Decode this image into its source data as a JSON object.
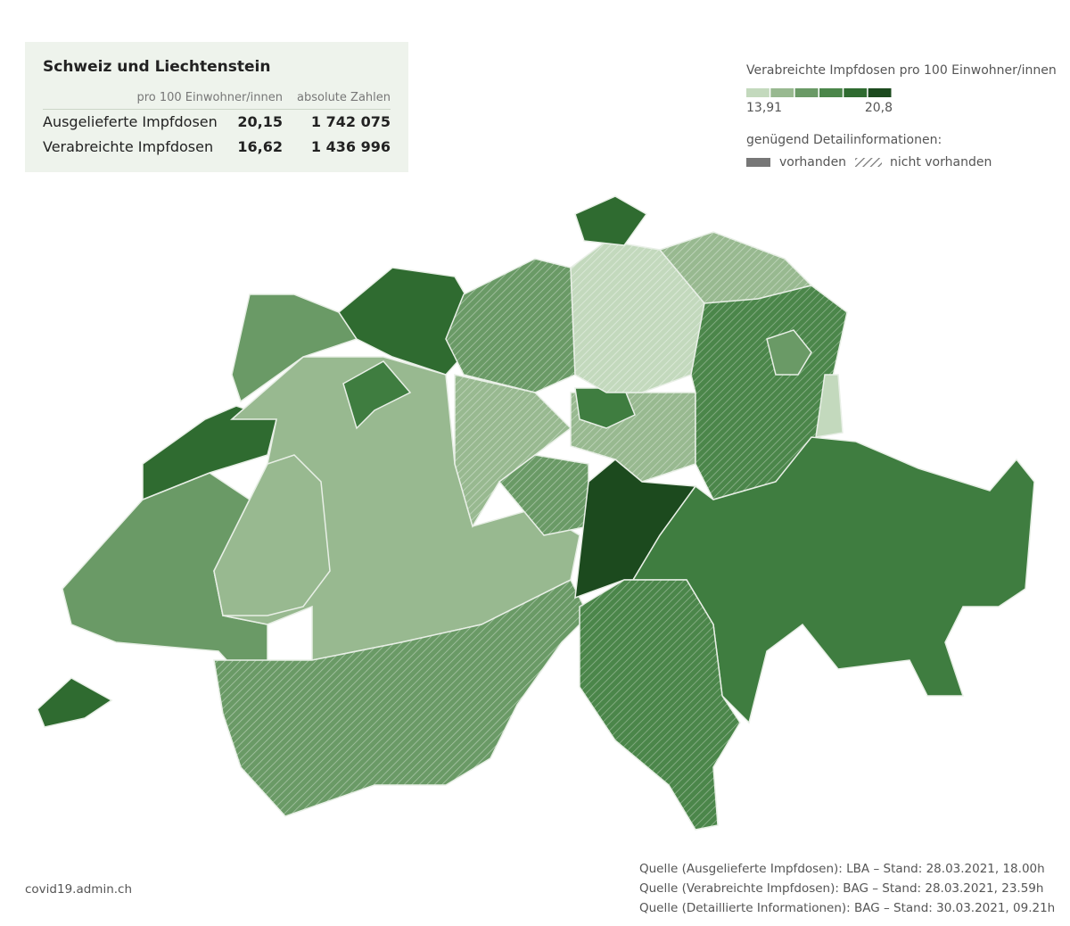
{
  "summary": {
    "title": "Schweiz und Liechtenstein",
    "columns": [
      "pro 100 Einwohner/innen",
      "absolute Zahlen"
    ],
    "rows": [
      [
        "Ausgelieferte Impfdosen",
        "20,15",
        "1 742 075"
      ],
      [
        "Verabreichte Impfdosen",
        "16,62",
        "1 436 996"
      ]
    ]
  },
  "legend": {
    "title": "Verabreichte Impfdosen pro 100 Einwohner/innen",
    "min": "13,91",
    "max": "20,8",
    "colors": [
      "#c3d9bd",
      "#98b990",
      "#6a9a66",
      "#4b864a",
      "#2f6b30",
      "#1c4a1e"
    ],
    "detail_title": "genügend Detailinformationen:",
    "detail_items": [
      "vorhanden",
      "nicht vorhanden"
    ]
  },
  "footer": {
    "site": "covid19.admin.ch",
    "sources": [
      "Quelle (Ausgelieferte Impfdosen): LBA – Stand: 28.03.2021, 18.00h",
      "Quelle (Verabreichte Impfdosen): BAG – Stand: 28.03.2021, 23.59h",
      "Quelle (Detaillierte Informationen): BAG – Stand: 30.03.2021, 09.21h"
    ]
  }
}
